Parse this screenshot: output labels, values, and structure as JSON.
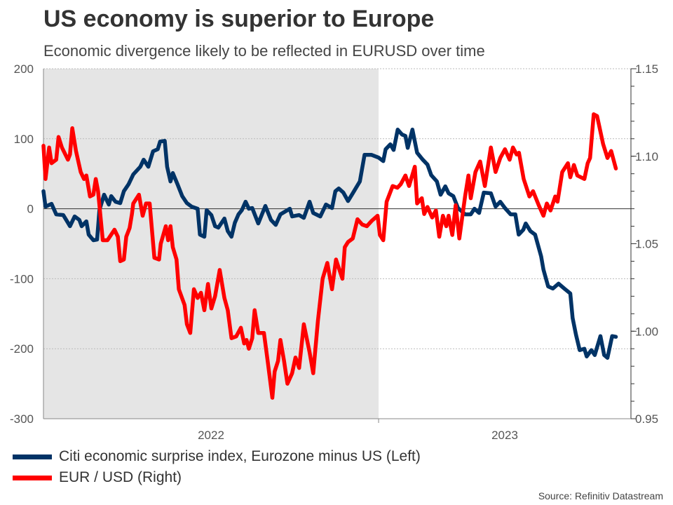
{
  "chart_data": {
    "type": "line",
    "title": "US economy is superior to Europe",
    "subtitle": "Economic divergence likely to be reflected in EURUSD over time",
    "source": "Source: Refinitiv Datastream",
    "x_tick_labels": [
      "2022",
      "2023"
    ],
    "xlim": [
      2022.0,
      2023.753
    ],
    "shaded_region": [
      2022.0,
      2023.0
    ],
    "shade_color": "#e5e5e5",
    "grid": "horizontal dotted",
    "legend_placement": "bottom-left",
    "y_left": {
      "lim": [
        -300,
        200
      ],
      "ticks": [
        200,
        100,
        0,
        -100,
        -200,
        -300
      ],
      "tick_labels": [
        "200",
        "100",
        "0",
        "-100",
        "-200",
        "-300"
      ]
    },
    "y_right": {
      "lim": [
        0.95,
        1.15
      ],
      "ticks": [
        1.15,
        1.1,
        1.05,
        1.0,
        0.95
      ],
      "tick_labels": [
        "1.15",
        "1.10",
        "1.05",
        "1.00",
        "0.95"
      ],
      "minor_step": 0.01
    },
    "series": [
      {
        "name": "Citi economic surprise index, Eurozone minus US (Left)",
        "axis": "left",
        "color": "#003366",
        "x": [
          2022.0,
          2022.006,
          2022.024,
          2022.038,
          2022.059,
          2022.073,
          2022.079,
          2022.093,
          2022.107,
          2022.114,
          2022.128,
          2022.135,
          2022.149,
          2022.16,
          2022.167,
          2022.181,
          2022.195,
          2022.202,
          2022.215,
          2022.229,
          2022.24,
          2022.254,
          2022.268,
          2022.289,
          2022.299,
          2022.313,
          2022.327,
          2022.341,
          2022.348,
          2022.362,
          2022.369,
          2022.379,
          2022.386,
          2022.4,
          2022.414,
          2022.428,
          2022.442,
          2022.46,
          2022.467,
          2022.48,
          2022.487,
          2022.501,
          2022.512,
          2022.522,
          2022.54,
          2022.55,
          2022.561,
          2022.571,
          2022.582,
          2022.592,
          2022.603,
          2022.613,
          2022.623,
          2022.641,
          2022.662,
          2022.679,
          2022.693,
          2022.707,
          2022.735,
          2022.742,
          2022.763,
          2022.777,
          2022.794,
          2022.805,
          2022.826,
          2022.843,
          2022.861,
          2022.871,
          2022.881,
          2022.895,
          2022.909,
          2022.923,
          2022.944,
          2022.958,
          2022.979,
          2023.0,
          2023.014,
          2023.021,
          2023.035,
          2023.045,
          2023.057,
          2023.07,
          2023.08,
          2023.087,
          2023.101,
          2023.115,
          2023.132,
          2023.146,
          2023.157,
          2023.174,
          2023.185,
          2023.199,
          2023.209,
          2023.223,
          2023.237,
          2023.258,
          2023.275,
          2023.286,
          2023.3,
          2023.314,
          2023.335,
          2023.349,
          2023.363,
          2023.377,
          2023.394,
          2023.408,
          2023.418,
          2023.432,
          2023.439,
          2023.453,
          2023.467,
          2023.485,
          2023.492,
          2023.506,
          2023.52,
          2023.537,
          2023.554,
          2023.572,
          2023.579,
          2023.589,
          2023.6,
          2023.614,
          2023.621,
          2023.635,
          2023.645,
          2023.662,
          2023.673,
          2023.683,
          2023.697,
          2023.708
        ],
        "y": [
          25,
          3,
          7,
          -8,
          -9,
          -20,
          -25,
          -11,
          -16,
          -25,
          -18,
          -37,
          -45,
          -44,
          -2,
          20,
          6,
          18,
          10,
          8,
          25,
          35,
          49,
          60,
          70,
          60,
          82,
          85,
          96,
          97,
          60,
          39,
          51,
          35,
          18,
          8,
          3,
          0,
          -37,
          -40,
          -2,
          -9,
          -25,
          -27,
          -14,
          -32,
          -40,
          -20,
          -8,
          -2,
          10,
          0,
          1,
          -21,
          4,
          -16,
          -23,
          -8,
          0,
          -11,
          -9,
          -13,
          10,
          -6,
          -11,
          6,
          1,
          25,
          29,
          23,
          11,
          22,
          39,
          77,
          77,
          73,
          68,
          85,
          92,
          84,
          113,
          106,
          104,
          87,
          113,
          80,
          70,
          63,
          48,
          39,
          20,
          32,
          22,
          18,
          1,
          -8,
          -8,
          0,
          -6,
          23,
          22,
          3,
          10,
          1,
          -8,
          -8,
          -37,
          -30,
          -21,
          -32,
          -37,
          -68,
          -87,
          -111,
          -114,
          -107,
          -114,
          -121,
          -156,
          -180,
          -202,
          -200,
          -211,
          -202,
          -209,
          -182,
          -209,
          -213,
          -182,
          -183
        ]
      },
      {
        "name": "EUR / USD (Right)",
        "axis": "right",
        "color": "#ff0000",
        "x": [
          2022.0,
          2022.006,
          2022.017,
          2022.024,
          2022.038,
          2022.045,
          2022.055,
          2022.073,
          2022.079,
          2022.086,
          2022.097,
          2022.111,
          2022.121,
          2022.128,
          2022.139,
          2022.149,
          2022.156,
          2022.163,
          2022.177,
          2022.191,
          2022.212,
          2022.222,
          2022.229,
          2022.24,
          2022.247,
          2022.257,
          2022.264,
          2022.268,
          2022.285,
          2022.296,
          2022.306,
          2022.317,
          2022.331,
          2022.345,
          2022.35,
          2022.365,
          2022.372,
          2022.379,
          2022.386,
          2022.397,
          2022.404,
          2022.421,
          2022.428,
          2022.438,
          2022.449,
          2022.46,
          2022.47,
          2022.48,
          2022.491,
          2022.501,
          2022.512,
          2022.526,
          2022.54,
          2022.55,
          2022.561,
          2022.575,
          2022.589,
          2022.599,
          2022.606,
          2022.613,
          2022.623,
          2022.63,
          2022.641,
          2022.658,
          2022.669,
          2022.683,
          2022.69,
          2022.7,
          2022.707,
          2022.718,
          2022.728,
          2022.742,
          2022.752,
          2022.763,
          2022.777,
          2022.794,
          2022.805,
          2022.819,
          2022.833,
          2022.847,
          2022.861,
          2022.873,
          2022.878,
          2022.892,
          2022.899,
          2022.909,
          2022.923,
          2022.937,
          2022.951,
          2022.965,
          2022.979,
          2022.997,
          2023.004,
          2023.014,
          2023.024,
          2023.042,
          2023.056,
          2023.066,
          2023.08,
          2023.091,
          2023.108,
          2023.115,
          2023.129,
          2023.136,
          2023.146,
          2023.16,
          2023.171,
          2023.181,
          2023.192,
          2023.202,
          2023.209,
          2023.22,
          2023.23,
          2023.241,
          2023.258,
          2023.268,
          2023.275,
          2023.289,
          2023.303,
          2023.317,
          2023.335,
          2023.349,
          2023.363,
          2023.377,
          2023.391,
          2023.401,
          2023.412,
          2023.419,
          2023.433,
          2023.45,
          2023.461,
          2023.478,
          2023.492,
          2023.502,
          2023.513,
          2023.527,
          2023.534,
          2023.548,
          2023.565,
          2023.572,
          2023.583,
          2023.593,
          2023.614,
          2023.624,
          2023.631,
          2023.642,
          2023.652,
          2023.67,
          2023.683,
          2023.694,
          2023.708
        ],
        "y": [
          1.106,
          1.087,
          1.105,
          1.096,
          1.098,
          1.111,
          1.105,
          1.098,
          1.101,
          1.116,
          1.103,
          1.091,
          1.087,
          1.089,
          1.077,
          1.078,
          1.087,
          1.08,
          1.052,
          1.052,
          1.058,
          1.054,
          1.04,
          1.041,
          1.054,
          1.059,
          1.067,
          1.073,
          1.078,
          1.066,
          1.073,
          1.073,
          1.042,
          1.041,
          1.05,
          1.06,
          1.052,
          1.06,
          1.048,
          1.041,
          1.024,
          1.015,
          1.004,
          0.999,
          1.024,
          1.019,
          1.022,
          1.012,
          1.027,
          1.013,
          1.02,
          1.035,
          1.019,
          1.012,
          0.996,
          0.997,
          1.002,
          0.993,
          0.995,
          0.99,
          0.996,
          1.012,
          0.999,
          0.999,
          0.983,
          0.962,
          0.977,
          0.983,
          0.995,
          0.983,
          0.97,
          0.976,
          0.985,
          0.979,
          1.004,
          0.988,
          0.976,
          1.006,
          1.03,
          1.039,
          1.024,
          1.041,
          1.038,
          1.03,
          1.048,
          1.051,
          1.053,
          1.064,
          1.061,
          1.06,
          1.063,
          1.066,
          1.055,
          1.052,
          1.074,
          1.083,
          1.082,
          1.084,
          1.089,
          1.083,
          1.094,
          1.073,
          1.076,
          1.067,
          1.071,
          1.065,
          1.069,
          1.054,
          1.066,
          1.06,
          1.066,
          1.055,
          1.072,
          1.053,
          1.077,
          1.089,
          1.076,
          1.091,
          1.097,
          1.083,
          1.105,
          1.091,
          1.099,
          1.104,
          1.098,
          1.105,
          1.101,
          1.102,
          1.087,
          1.077,
          1.08,
          1.072,
          1.066,
          1.073,
          1.069,
          1.077,
          1.074,
          1.091,
          1.096,
          1.088,
          1.095,
          1.089,
          1.087,
          1.096,
          1.099,
          1.124,
          1.123,
          1.107,
          1.099,
          1.103,
          1.093
        ]
      }
    ]
  }
}
